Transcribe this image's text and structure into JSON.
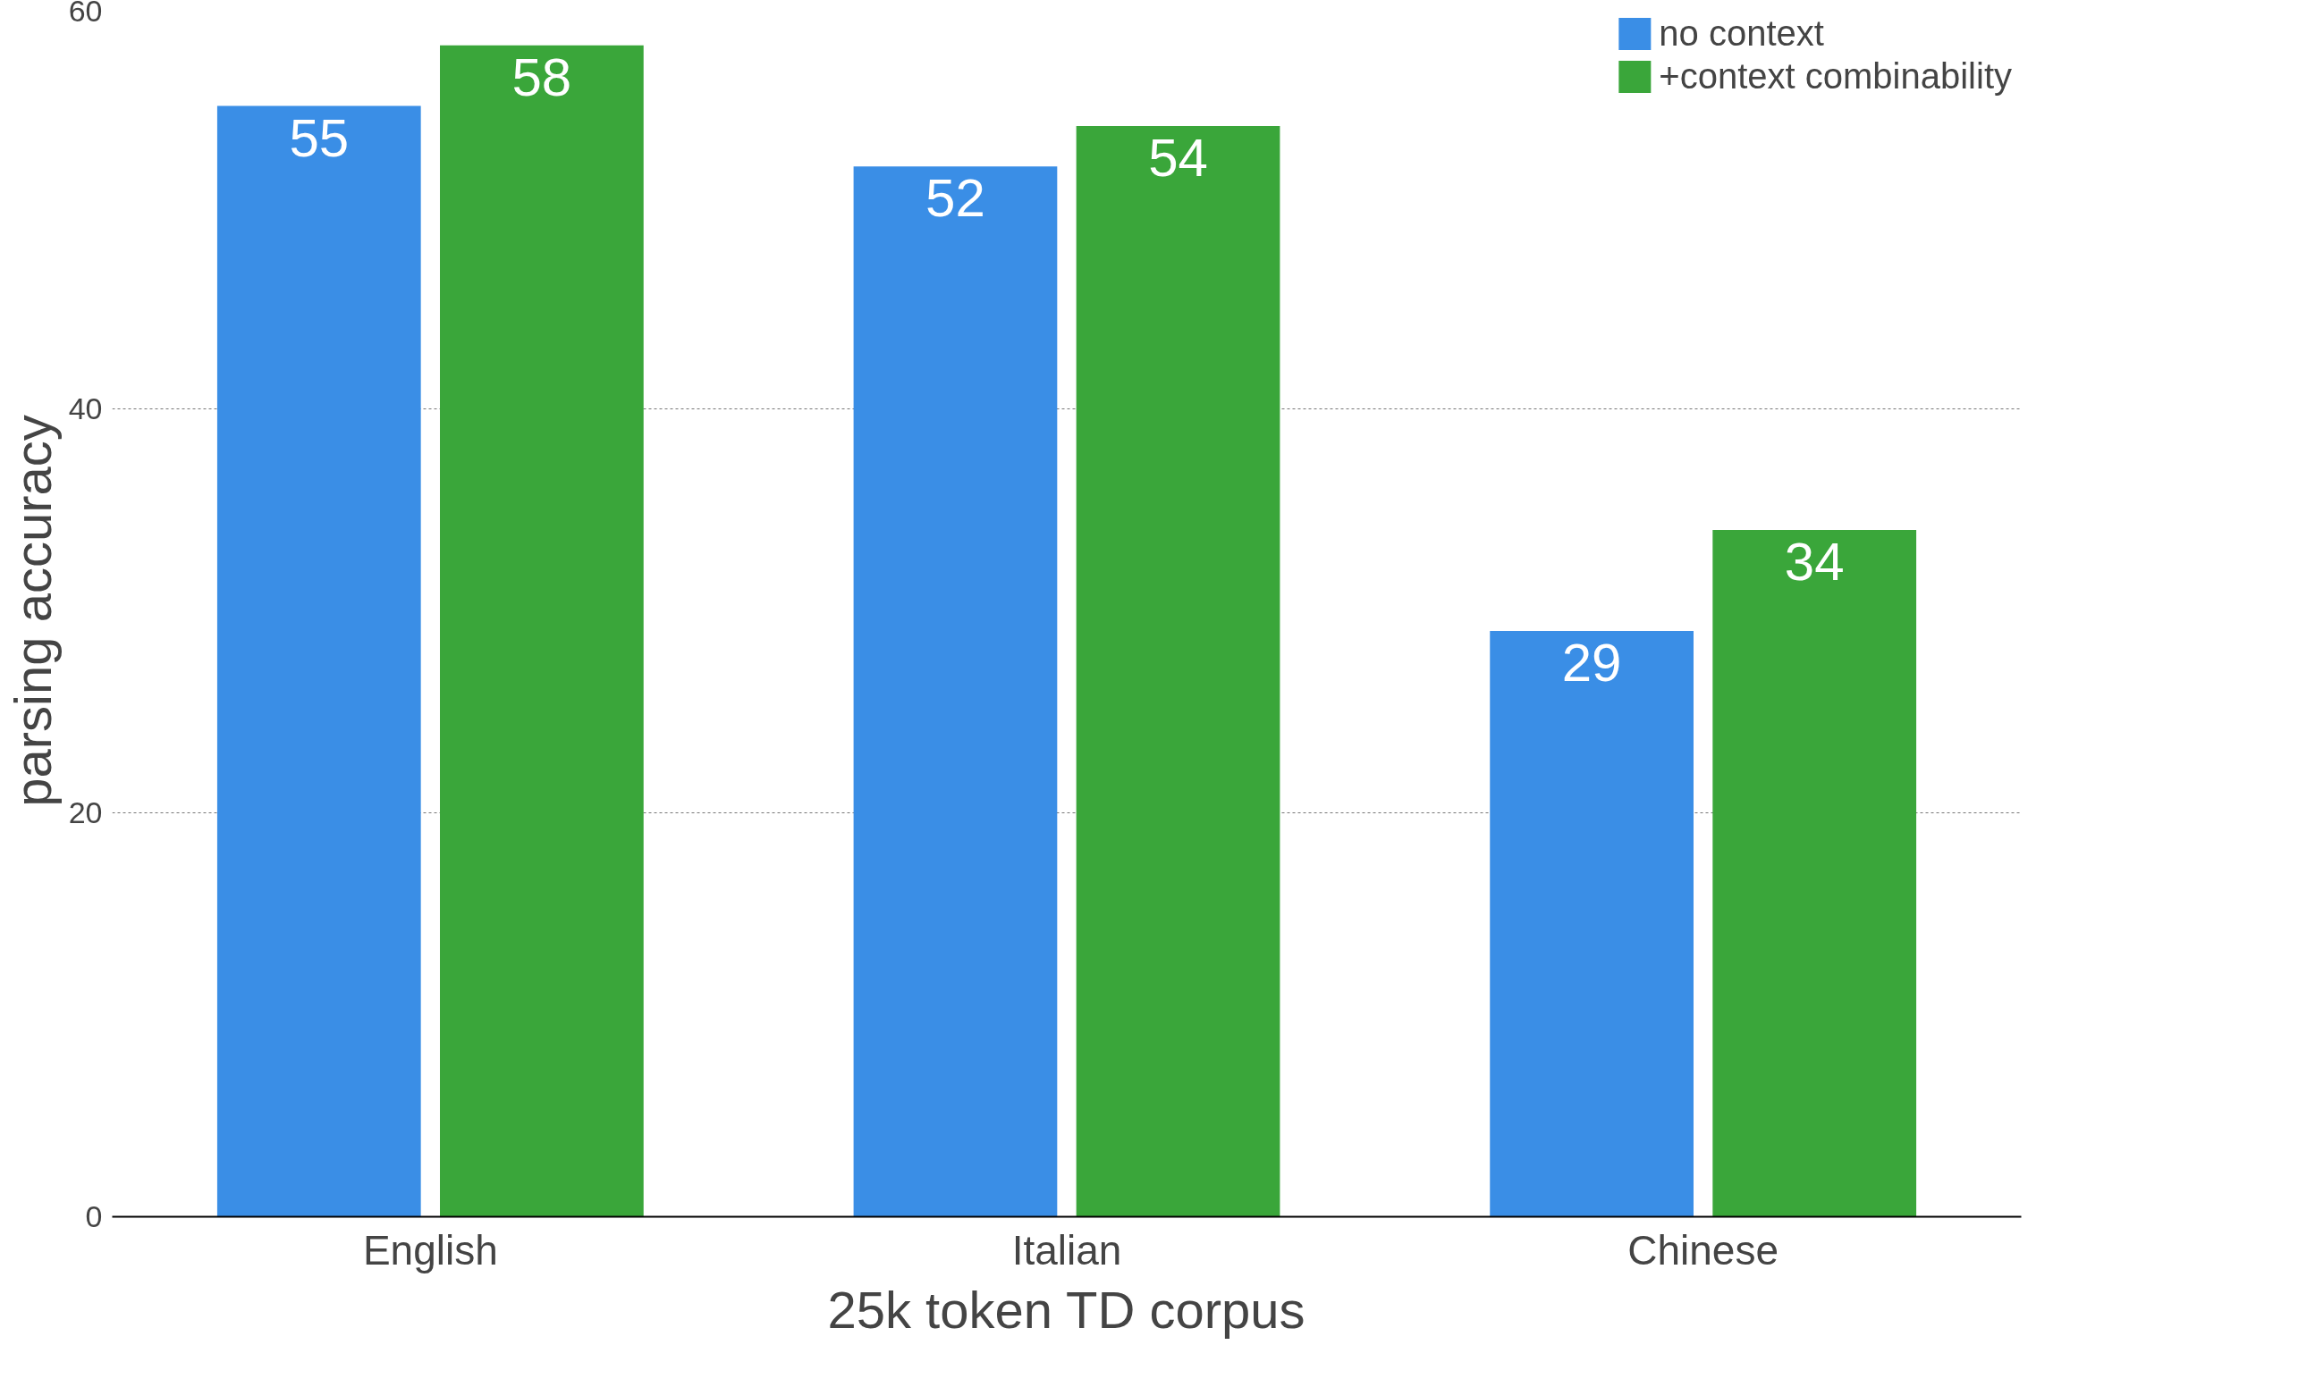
{
  "chart_data": {
    "type": "bar",
    "categories": [
      "English",
      "Italian",
      "Chinese"
    ],
    "series": [
      {
        "name": "no context",
        "color": "#3a8ee6",
        "values": [
          55,
          52,
          29
        ]
      },
      {
        "name": "+context combinability",
        "color": "#3aa63a",
        "values": [
          58,
          54,
          34
        ]
      }
    ],
    "xlabel": "25k token TD corpus",
    "ylabel": "parsing accuracy",
    "ylim": [
      0,
      60
    ],
    "yticks": [
      0,
      20,
      40,
      60
    ],
    "grid": "y",
    "legend": "top right",
    "data_labels": true
  }
}
